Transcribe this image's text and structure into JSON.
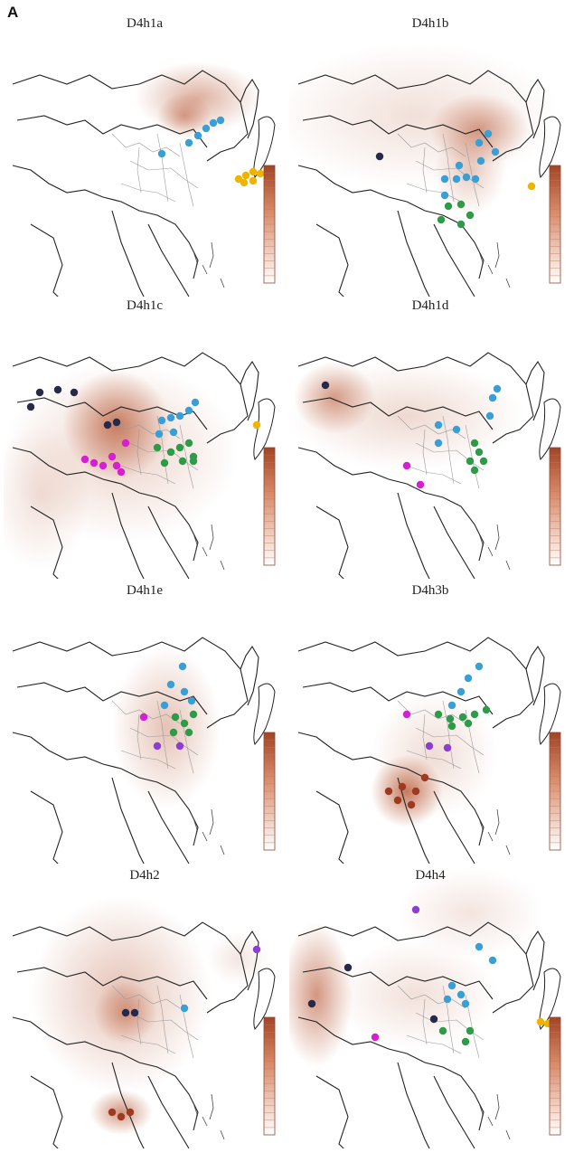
{
  "figure": {
    "panel_label": "A"
  },
  "colors": {
    "heat": "#b5502b",
    "blue": "#3a9fd5",
    "green": "#2e9b48",
    "magenta": "#d61fd0",
    "purple": "#8a3fd0",
    "navy": "#262a4a",
    "gold": "#f0b400",
    "darkred": "#9c3a22"
  },
  "maps": [
    {
      "title": "D4h1a",
      "heat": [
        [
          215,
          70,
          70,
          40,
          0.45
        ],
        [
          200,
          90,
          30,
          25,
          0.5
        ]
      ],
      "points": [
        [
          205,
          120,
          "blue"
        ],
        [
          215,
          112,
          "blue"
        ],
        [
          224,
          104,
          "blue"
        ],
        [
          232,
          98,
          "blue"
        ],
        [
          240,
          95,
          "blue"
        ],
        [
          175,
          132,
          "blue"
        ],
        [
          260,
          160,
          "gold"
        ],
        [
          268,
          156,
          "gold"
        ],
        [
          276,
          152,
          "gold"
        ],
        [
          284,
          154,
          "gold"
        ],
        [
          266,
          164,
          "gold"
        ],
        [
          276,
          162,
          "gold"
        ]
      ]
    },
    {
      "title": "D4h1b",
      "heat": [
        [
          140,
          90,
          160,
          80,
          0.18
        ],
        [
          210,
          105,
          55,
          40,
          0.55
        ],
        [
          200,
          150,
          40,
          50,
          0.3
        ]
      ],
      "points": [
        [
          100,
          135,
          "navy"
        ],
        [
          210,
          120,
          "blue"
        ],
        [
          220,
          110,
          "blue"
        ],
        [
          228,
          130,
          "blue"
        ],
        [
          188,
          145,
          "blue"
        ],
        [
          172,
          160,
          "blue"
        ],
        [
          185,
          160,
          "blue"
        ],
        [
          196,
          158,
          "blue"
        ],
        [
          206,
          160,
          "blue"
        ],
        [
          212,
          140,
          "blue"
        ],
        [
          172,
          178,
          "blue"
        ],
        [
          176,
          190,
          "green"
        ],
        [
          190,
          188,
          "green"
        ],
        [
          168,
          205,
          "green"
        ],
        [
          200,
          200,
          "green"
        ],
        [
          190,
          210,
          "green"
        ],
        [
          268,
          168,
          "gold"
        ]
      ]
    },
    {
      "title": "D4h1c",
      "heat": [
        [
          125,
          120,
          60,
          60,
          0.7
        ],
        [
          130,
          150,
          130,
          100,
          0.25
        ],
        [
          40,
          200,
          55,
          80,
          0.18
        ]
      ],
      "points": [
        [
          40,
          84,
          "navy"
        ],
        [
          60,
          81,
          "navy"
        ],
        [
          78,
          84,
          "navy"
        ],
        [
          30,
          100,
          "navy"
        ],
        [
          115,
          120,
          "navy"
        ],
        [
          125,
          117,
          "navy"
        ],
        [
          120,
          155,
          "magenta"
        ],
        [
          90,
          158,
          "magenta"
        ],
        [
          100,
          162,
          "magenta"
        ],
        [
          110,
          165,
          "magenta"
        ],
        [
          125,
          165,
          "magenta"
        ],
        [
          130,
          172,
          "magenta"
        ],
        [
          135,
          140,
          "magenta"
        ],
        [
          175,
          115,
          "blue"
        ],
        [
          185,
          112,
          "blue"
        ],
        [
          195,
          110,
          "blue"
        ],
        [
          205,
          104,
          "blue"
        ],
        [
          212,
          95,
          "blue"
        ],
        [
          172,
          130,
          "blue"
        ],
        [
          188,
          128,
          "blue"
        ],
        [
          170,
          145,
          "green"
        ],
        [
          185,
          150,
          "green"
        ],
        [
          195,
          145,
          "green"
        ],
        [
          205,
          140,
          "green"
        ],
        [
          210,
          155,
          "green"
        ],
        [
          178,
          162,
          "green"
        ],
        [
          198,
          160,
          "green"
        ],
        [
          210,
          160,
          "green"
        ],
        [
          280,
          120,
          "gold"
        ]
      ]
    },
    {
      "title": "D4h1d",
      "heat": [
        [
          50,
          90,
          45,
          40,
          0.55
        ],
        [
          130,
          110,
          130,
          60,
          0.22
        ]
      ],
      "points": [
        [
          40,
          76,
          "navy"
        ],
        [
          165,
          120,
          "blue"
        ],
        [
          185,
          125,
          "blue"
        ],
        [
          165,
          140,
          "blue"
        ],
        [
          222,
          110,
          "blue"
        ],
        [
          230,
          80,
          "blue"
        ],
        [
          225,
          90,
          "blue"
        ],
        [
          205,
          140,
          "green"
        ],
        [
          210,
          150,
          "green"
        ],
        [
          200,
          160,
          "green"
        ],
        [
          215,
          160,
          "green"
        ],
        [
          205,
          170,
          "green"
        ],
        [
          130,
          165,
          "magenta"
        ],
        [
          145,
          186,
          "magenta"
        ]
      ]
    },
    {
      "title": "D4h1e",
      "heat": [
        [
          180,
          140,
          60,
          90,
          0.35
        ]
      ],
      "points": [
        [
          198,
          72,
          "blue"
        ],
        [
          185,
          92,
          "blue"
        ],
        [
          200,
          100,
          "blue"
        ],
        [
          208,
          110,
          "blue"
        ],
        [
          178,
          115,
          "blue"
        ],
        [
          190,
          128,
          "green"
        ],
        [
          200,
          135,
          "green"
        ],
        [
          205,
          145,
          "green"
        ],
        [
          188,
          145,
          "green"
        ],
        [
          210,
          125,
          "green"
        ],
        [
          155,
          128,
          "magenta"
        ],
        [
          170,
          160,
          "purple"
        ],
        [
          195,
          160,
          "purple"
        ]
      ]
    },
    {
      "title": "D4h3b",
      "heat": [
        [
          130,
          210,
          40,
          40,
          0.75
        ],
        [
          160,
          170,
          70,
          70,
          0.2
        ]
      ],
      "points": [
        [
          210,
          72,
          "blue"
        ],
        [
          198,
          85,
          "blue"
        ],
        [
          190,
          100,
          "blue"
        ],
        [
          180,
          115,
          "blue"
        ],
        [
          165,
          125,
          "green"
        ],
        [
          178,
          130,
          "green"
        ],
        [
          192,
          128,
          "green"
        ],
        [
          205,
          125,
          "green"
        ],
        [
          218,
          120,
          "green"
        ],
        [
          180,
          138,
          "green"
        ],
        [
          198,
          135,
          "green"
        ],
        [
          130,
          125,
          "magenta"
        ],
        [
          155,
          160,
          "purple"
        ],
        [
          175,
          162,
          "purple"
        ],
        [
          110,
          210,
          "darkred"
        ],
        [
          125,
          205,
          "darkred"
        ],
        [
          140,
          210,
          "darkred"
        ],
        [
          150,
          195,
          "darkred"
        ],
        [
          120,
          220,
          "darkred"
        ],
        [
          135,
          225,
          "darkred"
        ]
      ]
    },
    {
      "title": "D4h2",
      "heat": [
        [
          130,
          120,
          100,
          110,
          0.35
        ],
        [
          135,
          140,
          35,
          35,
          0.5
        ],
        [
          130,
          250,
          35,
          25,
          0.6
        ],
        [
          260,
          80,
          35,
          30,
          0.15
        ]
      ],
      "points": [
        [
          280,
          70,
          "purple"
        ],
        [
          135,
          140,
          "navy"
        ],
        [
          145,
          140,
          "navy"
        ],
        [
          200,
          135,
          "blue"
        ],
        [
          120,
          250,
          "darkred"
        ],
        [
          130,
          255,
          "darkred"
        ],
        [
          140,
          250,
          "darkred"
        ]
      ]
    },
    {
      "title": "D4h4",
      "heat": [
        [
          30,
          120,
          40,
          80,
          0.6
        ],
        [
          200,
          30,
          80,
          50,
          0.15
        ],
        [
          140,
          120,
          90,
          60,
          0.18
        ]
      ],
      "points": [
        [
          140,
          26,
          "purple"
        ],
        [
          65,
          90,
          "navy"
        ],
        [
          25,
          130,
          "navy"
        ],
        [
          160,
          147,
          "navy"
        ],
        [
          210,
          67,
          "blue"
        ],
        [
          225,
          82,
          "blue"
        ],
        [
          180,
          110,
          "blue"
        ],
        [
          190,
          120,
          "blue"
        ],
        [
          175,
          125,
          "blue"
        ],
        [
          195,
          130,
          "blue"
        ],
        [
          200,
          160,
          "green"
        ],
        [
          170,
          160,
          "green"
        ],
        [
          195,
          172,
          "green"
        ],
        [
          95,
          167,
          "magenta"
        ],
        [
          278,
          150,
          "gold"
        ],
        [
          286,
          152,
          "gold"
        ]
      ]
    }
  ]
}
